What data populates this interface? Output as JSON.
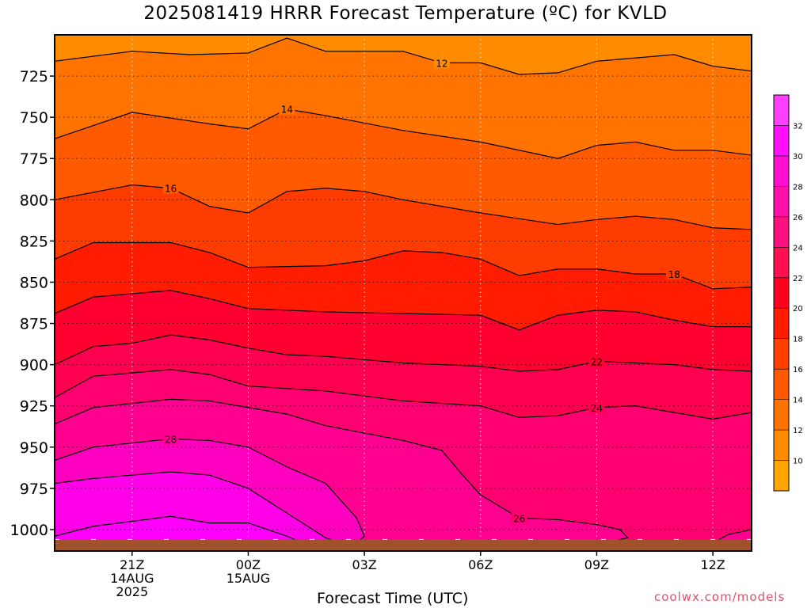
{
  "title": "2025081419 HRRR Forecast Temperature (ºC) for KVLD",
  "footer": {
    "xlabel": "Forecast Time (UTC)",
    "credit": "coolwx.com/models"
  },
  "chart_data": {
    "type": "contour",
    "title": "2025081419 HRRR Forecast Temperature (ºC) for KVLD",
    "xlabel": "Forecast Time (UTC)",
    "ylabel": "",
    "x_ticks": [
      {
        "lines": [
          "21Z",
          "14AUG",
          "2025"
        ],
        "hour": 21
      },
      {
        "lines": [
          "00Z",
          "15AUG"
        ],
        "hour": 24
      },
      {
        "lines": [
          "03Z"
        ],
        "hour": 27
      },
      {
        "lines": [
          "06Z"
        ],
        "hour": 30
      },
      {
        "lines": [
          "09Z"
        ],
        "hour": 33
      },
      {
        "lines": [
          "12Z"
        ],
        "hour": 36
      }
    ],
    "x_range_hours": [
      19,
      37
    ],
    "y_ticks": [
      725,
      750,
      775,
      800,
      825,
      850,
      875,
      900,
      925,
      950,
      975,
      1000
    ],
    "y_range": [
      700,
      1013
    ],
    "y_reversed": true,
    "grid": true,
    "colorbar": {
      "labels": [
        10,
        12,
        14,
        16,
        18,
        20,
        22,
        24,
        26,
        28,
        30,
        32
      ],
      "colors": [
        "#ffa500",
        "#ff8c00",
        "#ff7300",
        "#ff5a00",
        "#ff4000",
        "#ff1c00",
        "#ff0020",
        "#ff1050",
        "#ff1080",
        "#ff10a8",
        "#ff10d0",
        "#ff10ff",
        "#ff40ff"
      ]
    },
    "fill_bands": [
      {
        "min": 10,
        "max": 12,
        "color": "#ff8c00"
      },
      {
        "min": 12,
        "max": 14,
        "color": "#ff7300"
      },
      {
        "min": 14,
        "max": 16,
        "color": "#ff5a00"
      },
      {
        "min": 16,
        "max": 18,
        "color": "#ff3c00"
      },
      {
        "min": 18,
        "max": 20,
        "color": "#ff1c00"
      },
      {
        "min": 20,
        "max": 22,
        "color": "#ff0030"
      },
      {
        "min": 22,
        "max": 24,
        "color": "#ff0050"
      },
      {
        "min": 24,
        "max": 26,
        "color": "#ff0070"
      },
      {
        "min": 26,
        "max": 28,
        "color": "#ff0090"
      },
      {
        "min": 28,
        "max": 30,
        "color": "#ff00c0"
      },
      {
        "min": 30,
        "max": 32,
        "color": "#ff00e8"
      },
      {
        "min": 32,
        "max": 34,
        "color": "#ff00ff"
      }
    ],
    "contours": [
      {
        "level": 12,
        "label_at_hour": 29,
        "points": [
          [
            19,
            716
          ],
          [
            21,
            710
          ],
          [
            22.5,
            712
          ],
          [
            24,
            711
          ],
          [
            25,
            702
          ],
          [
            26,
            710
          ],
          [
            28,
            710
          ],
          [
            29,
            717
          ],
          [
            30,
            717
          ],
          [
            31,
            724
          ],
          [
            32,
            723
          ],
          [
            33,
            716
          ],
          [
            35,
            712
          ],
          [
            36,
            719
          ],
          [
            37,
            722
          ]
        ]
      },
      {
        "level": 14,
        "label_at_hour": 25,
        "points": [
          [
            19,
            763
          ],
          [
            21,
            747
          ],
          [
            23,
            754
          ],
          [
            24,
            757
          ],
          [
            25,
            745
          ],
          [
            26,
            749
          ],
          [
            28,
            758
          ],
          [
            30,
            765
          ],
          [
            32,
            775
          ],
          [
            33,
            767
          ],
          [
            34,
            765
          ],
          [
            35,
            770
          ],
          [
            36,
            770
          ],
          [
            37,
            773
          ]
        ]
      },
      {
        "level": 16,
        "label_at_hour": 22,
        "points": [
          [
            19,
            800
          ],
          [
            21,
            791
          ],
          [
            22,
            793
          ],
          [
            23,
            804
          ],
          [
            24,
            808
          ],
          [
            25,
            795
          ],
          [
            26,
            793
          ],
          [
            27,
            795
          ],
          [
            28,
            800
          ],
          [
            30,
            808
          ],
          [
            32,
            815
          ],
          [
            33,
            812
          ],
          [
            34,
            810
          ],
          [
            35,
            812
          ],
          [
            36,
            817
          ],
          [
            37,
            818
          ]
        ]
      },
      {
        "level": 18,
        "label_at_hour": 35,
        "points": [
          [
            19,
            836
          ],
          [
            20,
            826
          ],
          [
            22,
            826
          ],
          [
            23,
            832
          ],
          [
            24,
            841
          ],
          [
            26,
            840
          ],
          [
            27,
            837
          ],
          [
            28,
            831
          ],
          [
            29,
            832
          ],
          [
            30,
            836
          ],
          [
            31,
            846
          ],
          [
            32,
            842
          ],
          [
            33,
            842
          ],
          [
            34,
            845
          ],
          [
            35,
            845
          ],
          [
            36,
            854
          ],
          [
            37,
            853
          ]
        ]
      },
      {
        "level": 20,
        "label_at_hour": null,
        "points": [
          [
            19,
            869
          ],
          [
            20,
            859
          ],
          [
            22,
            855
          ],
          [
            23,
            860
          ],
          [
            24,
            866
          ],
          [
            26,
            868
          ],
          [
            28,
            869
          ],
          [
            30,
            870
          ],
          [
            31,
            879
          ],
          [
            32,
            870
          ],
          [
            33,
            867
          ],
          [
            34,
            868
          ],
          [
            35,
            873
          ],
          [
            36,
            877
          ],
          [
            37,
            877
          ]
        ]
      },
      {
        "level": 22,
        "label_at_hour": 33,
        "points": [
          [
            19,
            900
          ],
          [
            20,
            889
          ],
          [
            21,
            887
          ],
          [
            22,
            882
          ],
          [
            23,
            885
          ],
          [
            24,
            890
          ],
          [
            25,
            894
          ],
          [
            26,
            895
          ],
          [
            28,
            899
          ],
          [
            30,
            901
          ],
          [
            31,
            904
          ],
          [
            32,
            903
          ],
          [
            33,
            898
          ],
          [
            35,
            900
          ],
          [
            36,
            903
          ],
          [
            37,
            904
          ]
        ]
      },
      {
        "level": 24,
        "label_at_hour": 33,
        "points": [
          [
            19,
            920
          ],
          [
            20,
            907
          ],
          [
            21,
            905
          ],
          [
            22,
            903
          ],
          [
            23,
            906
          ],
          [
            24,
            913
          ],
          [
            26,
            916
          ],
          [
            28,
            922
          ],
          [
            30,
            925
          ],
          [
            31,
            932
          ],
          [
            32,
            931
          ],
          [
            33,
            926
          ],
          [
            34,
            925
          ],
          [
            35,
            929
          ],
          [
            36,
            933
          ],
          [
            37,
            929
          ]
        ]
      },
      {
        "level": 26,
        "label_at_hour": 31,
        "points": [
          [
            19,
            936
          ],
          [
            20,
            926
          ],
          [
            22,
            921
          ],
          [
            23,
            922
          ],
          [
            24,
            926
          ],
          [
            25,
            930
          ],
          [
            26,
            937
          ],
          [
            28,
            946
          ],
          [
            29,
            952
          ],
          [
            29.5,
            966
          ],
          [
            30,
            979
          ],
          [
            31,
            993
          ],
          [
            32,
            994
          ],
          [
            33,
            997
          ],
          [
            33.6,
            1000
          ],
          [
            33.8,
            1005
          ],
          [
            33.2,
            1008
          ],
          [
            32,
            1009
          ]
        ]
      },
      {
        "level": 28,
        "label_at_hour": 22,
        "points": [
          [
            19,
            958
          ],
          [
            20,
            950
          ],
          [
            22,
            945
          ],
          [
            23,
            946
          ],
          [
            24,
            950
          ],
          [
            25,
            962
          ],
          [
            26,
            972
          ],
          [
            26.8,
            993
          ],
          [
            27,
            1004
          ],
          [
            26.8,
            1008
          ]
        ]
      },
      {
        "level": 30,
        "label_at_hour": null,
        "points": [
          [
            19,
            972
          ],
          [
            20,
            969
          ],
          [
            22,
            965
          ],
          [
            23,
            967
          ],
          [
            24,
            975
          ],
          [
            25,
            990
          ],
          [
            26,
            1005
          ],
          [
            26.5,
            1009
          ]
        ]
      },
      {
        "level": 32,
        "label_at_hour": null,
        "points": [
          [
            19,
            1004
          ],
          [
            20,
            998
          ],
          [
            22,
            992
          ],
          [
            23,
            996
          ],
          [
            24,
            996
          ],
          [
            25,
            1004
          ],
          [
            25.5,
            1009
          ]
        ]
      },
      {
        "level": 26,
        "label_at_hour": null,
        "points": [
          [
            35.8,
            1012
          ],
          [
            36,
            1008
          ],
          [
            36.4,
            1003
          ],
          [
            37,
            1000
          ]
        ]
      }
    ],
    "ground": {
      "color": "#a0522d",
      "surface_pressure": 1006
    }
  }
}
